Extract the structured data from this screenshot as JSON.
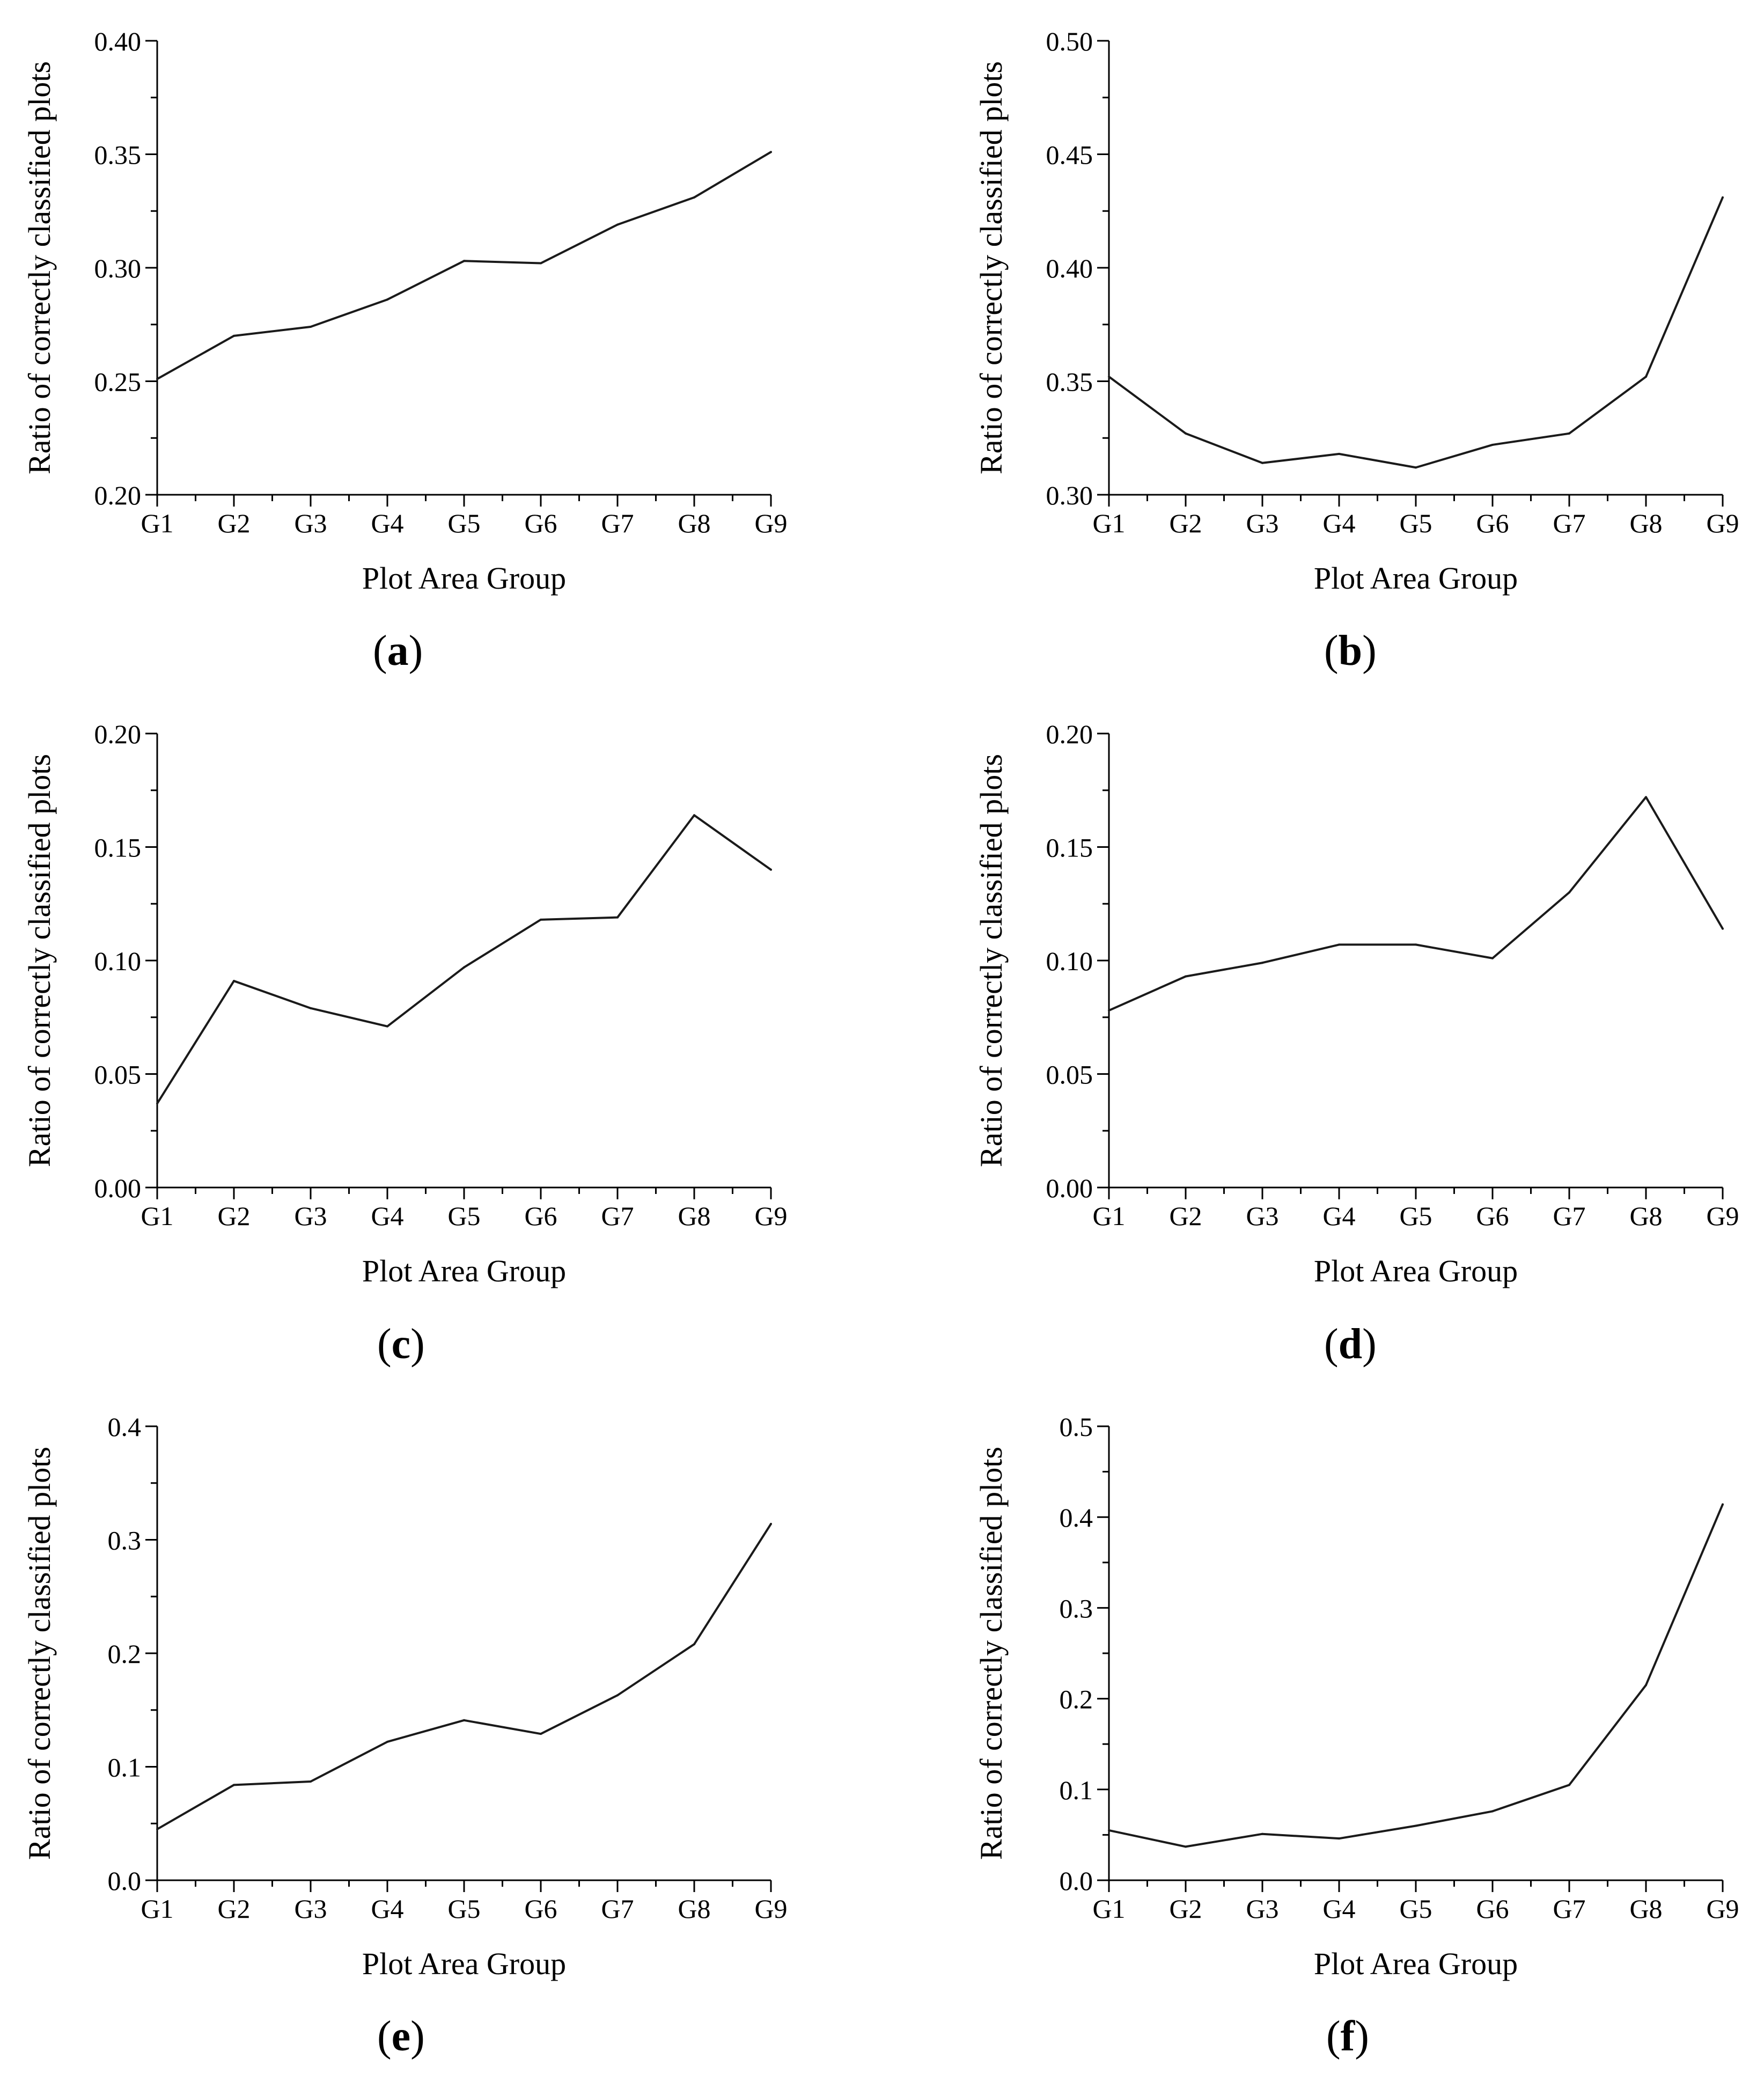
{
  "chart_data": [
    {
      "type": "line",
      "panel": "a",
      "categories": [
        "G1",
        "G2",
        "G3",
        "G4",
        "G5",
        "G6",
        "G7",
        "G8",
        "G9"
      ],
      "values": [
        0.251,
        0.27,
        0.274,
        0.286,
        0.303,
        0.302,
        0.319,
        0.331,
        0.351
      ],
      "xlabel": "Plot Area Group",
      "ylabel": "Ratio of correctly classified  plots",
      "ylim": [
        0.2,
        0.4
      ],
      "yticks": [
        "0.20",
        "0.25",
        "0.30",
        "0.35",
        "0.40"
      ],
      "ytick_values": [
        0.2,
        0.25,
        0.3,
        0.35,
        0.4
      ]
    },
    {
      "type": "line",
      "panel": "b",
      "categories": [
        "G1",
        "G2",
        "G3",
        "G4",
        "G5",
        "G6",
        "G7",
        "G8",
        "G9"
      ],
      "values": [
        0.352,
        0.327,
        0.314,
        0.318,
        0.312,
        0.322,
        0.327,
        0.352,
        0.431
      ],
      "xlabel": "Plot Area Group",
      "ylabel": "Ratio of correctly classified  plots",
      "ylim": [
        0.3,
        0.5
      ],
      "yticks": [
        "0.30",
        "0.35",
        "0.40",
        "0.45",
        "0.50"
      ],
      "ytick_values": [
        0.3,
        0.35,
        0.4,
        0.45,
        0.5
      ]
    },
    {
      "type": "line",
      "panel": "c",
      "categories": [
        "G1",
        "G2",
        "G3",
        "G4",
        "G5",
        "G6",
        "G7",
        "G8",
        "G9"
      ],
      "values": [
        0.037,
        0.091,
        0.079,
        0.071,
        0.097,
        0.118,
        0.119,
        0.164,
        0.14
      ],
      "xlabel": "Plot Area Group",
      "ylabel": "Ratio of correctly classified  plots",
      "ylim": [
        0.0,
        0.2
      ],
      "yticks": [
        "0.00",
        "0.05",
        "0.10",
        "0.15",
        "0.20"
      ],
      "ytick_values": [
        0.0,
        0.05,
        0.1,
        0.15,
        0.2
      ]
    },
    {
      "type": "line",
      "panel": "d",
      "categories": [
        "G1",
        "G2",
        "G3",
        "G4",
        "G5",
        "G6",
        "G7",
        "G8",
        "G9"
      ],
      "values": [
        0.078,
        0.093,
        0.099,
        0.107,
        0.107,
        0.101,
        0.13,
        0.172,
        0.114
      ],
      "xlabel": "Plot Area Group",
      "ylabel": "Ratio of correctly classified  plots",
      "ylim": [
        0.0,
        0.2
      ],
      "yticks": [
        "0.00",
        "0.05",
        "0.10",
        "0.15",
        "0.20"
      ],
      "ytick_values": [
        0.0,
        0.05,
        0.1,
        0.15,
        0.2
      ]
    },
    {
      "type": "line",
      "panel": "e",
      "categories": [
        "G1",
        "G2",
        "G3",
        "G4",
        "G5",
        "G6",
        "G7",
        "G8",
        "G9"
      ],
      "values": [
        0.045,
        0.084,
        0.087,
        0.122,
        0.141,
        0.129,
        0.163,
        0.208,
        0.314
      ],
      "xlabel": "Plot Area Group",
      "ylabel": "Ratio of correctly classified  plots",
      "ylim": [
        0.0,
        0.4
      ],
      "yticks": [
        "0.0",
        "0.1",
        "0.2",
        "0.3",
        "0.4"
      ],
      "ytick_values": [
        0.0,
        0.1,
        0.2,
        0.3,
        0.4
      ]
    },
    {
      "type": "line",
      "panel": "f",
      "categories": [
        "G1",
        "G2",
        "G3",
        "G4",
        "G5",
        "G6",
        "G7",
        "G8",
        "G9"
      ],
      "values": [
        0.055,
        0.037,
        0.051,
        0.046,
        0.06,
        0.076,
        0.105,
        0.215,
        0.414
      ],
      "xlabel": "Plot Area Group",
      "ylabel": "Ratio of correctly classified  plots",
      "ylim": [
        0.0,
        0.5
      ],
      "yticks": [
        "0.0",
        "0.1",
        "0.2",
        "0.3",
        "0.4",
        "0.5"
      ],
      "ytick_values": [
        0.0,
        0.1,
        0.2,
        0.3,
        0.4,
        0.5
      ]
    }
  ],
  "panel_labels": {
    "a": {
      "open": "(",
      "letter": "a",
      "close": ")"
    },
    "b": {
      "open": "(",
      "letter": "b",
      "close": ")"
    },
    "c": {
      "open": "(",
      "letter": "c",
      "close": ")"
    },
    "d": {
      "open": "(",
      "letter": "d",
      "close": ")"
    },
    "e": {
      "open": "(",
      "letter": "e",
      "close": ")"
    },
    "f": {
      "open": "(",
      "letter": "f",
      "close": ")"
    }
  },
  "colors": {
    "line": "#1a1a1a",
    "axis": "#000000",
    "background": "#ffffff"
  }
}
